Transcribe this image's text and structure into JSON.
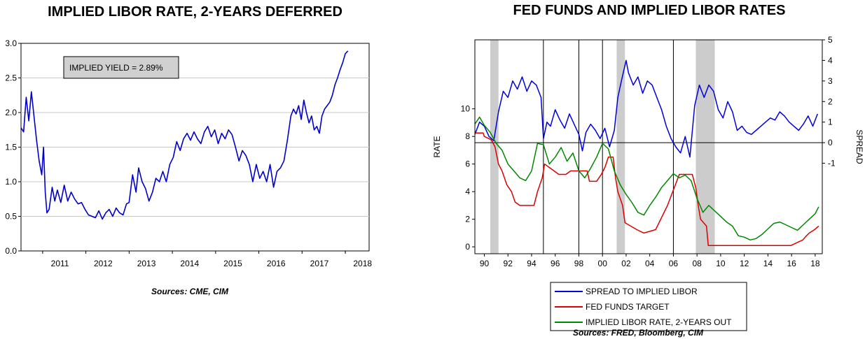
{
  "chart_data": [
    {
      "type": "line",
      "title": "IMPLIED LIBOR RATE, 2-YEARS DEFERRED",
      "annotation": "IMPLIED YIELD = 2.89%",
      "source": "Sources:  CME, CIM",
      "ylim": [
        0,
        3
      ],
      "yticks": [
        "0.0",
        "0.5",
        "1.0",
        "1.5",
        "2.0",
        "2.5",
        "3.0"
      ],
      "xlim": [
        2010.5,
        2018.55
      ],
      "xticks": [
        "2011",
        "2012",
        "2013",
        "2014",
        "2015",
        "2016",
        "2017",
        "2018"
      ],
      "grid": true,
      "series": [
        {
          "color": "#0000cc",
          "x": [
            2010.5,
            2010.56,
            2010.62,
            2010.68,
            2010.74,
            2010.8,
            2010.86,
            2010.92,
            2010.98,
            2011.02,
            2011.06,
            2011.1,
            2011.15,
            2011.22,
            2011.28,
            2011.34,
            2011.42,
            2011.5,
            2011.58,
            2011.66,
            2011.74,
            2011.82,
            2011.9,
            2011.98,
            2012.06,
            2012.14,
            2012.22,
            2012.3,
            2012.38,
            2012.46,
            2012.54,
            2012.62,
            2012.7,
            2012.78,
            2012.86,
            2012.94,
            2013.0,
            2013.08,
            2013.16,
            2013.22,
            2013.3,
            2013.38,
            2013.46,
            2013.54,
            2013.62,
            2013.7,
            2013.78,
            2013.86,
            2013.94,
            2014.02,
            2014.1,
            2014.18,
            2014.26,
            2014.34,
            2014.42,
            2014.5,
            2014.58,
            2014.66,
            2014.74,
            2014.82,
            2014.9,
            2014.98,
            2015.06,
            2015.14,
            2015.22,
            2015.3,
            2015.38,
            2015.46,
            2015.54,
            2015.62,
            2015.7,
            2015.78,
            2015.86,
            2015.94,
            2016.02,
            2016.1,
            2016.18,
            2016.26,
            2016.34,
            2016.42,
            2016.5,
            2016.58,
            2016.66,
            2016.74,
            2016.8,
            2016.86,
            2016.92,
            2016.98,
            2017.04,
            2017.1,
            2017.16,
            2017.22,
            2017.28,
            2017.34,
            2017.4,
            2017.46,
            2017.52,
            2017.58,
            2017.64,
            2017.7,
            2017.76,
            2017.82,
            2017.88,
            2017.94,
            2018.0,
            2018.06
          ],
          "y": [
            1.78,
            1.72,
            2.22,
            1.88,
            2.3,
            1.95,
            1.6,
            1.3,
            1.1,
            1.5,
            0.85,
            0.55,
            0.6,
            0.92,
            0.72,
            0.88,
            0.7,
            0.95,
            0.72,
            0.85,
            0.75,
            0.68,
            0.7,
            0.6,
            0.52,
            0.5,
            0.48,
            0.58,
            0.46,
            0.55,
            0.6,
            0.5,
            0.62,
            0.55,
            0.52,
            0.68,
            0.7,
            1.1,
            0.85,
            1.2,
            1.0,
            0.9,
            0.72,
            0.85,
            1.05,
            1.0,
            1.15,
            1.0,
            1.25,
            1.35,
            1.58,
            1.45,
            1.62,
            1.7,
            1.6,
            1.72,
            1.62,
            1.55,
            1.72,
            1.8,
            1.65,
            1.75,
            1.55,
            1.7,
            1.62,
            1.75,
            1.68,
            1.5,
            1.3,
            1.45,
            1.38,
            1.25,
            1.0,
            1.25,
            1.05,
            1.15,
            1.0,
            1.25,
            0.92,
            1.15,
            1.2,
            1.3,
            1.6,
            1.95,
            2.05,
            1.98,
            2.1,
            1.9,
            2.18,
            2.0,
            1.85,
            1.95,
            1.75,
            1.8,
            1.7,
            1.95,
            2.05,
            2.1,
            2.15,
            2.25,
            2.4,
            2.5,
            2.62,
            2.72,
            2.85,
            2.89
          ]
        }
      ]
    },
    {
      "type": "line",
      "title": "FED FUNDS AND IMPLIED LIBOR RATES",
      "source": "Sources:  FRED, Bloomberg, CIM",
      "ylabel": "RATE",
      "ylabel_right": "SPREAD",
      "ylim": [
        -0.5,
        15
      ],
      "yticks": [
        "0",
        "2",
        "4",
        "6",
        "8",
        "10"
      ],
      "ylim_right": [
        -5.4,
        5
      ],
      "yticks_right": [
        "-1",
        "0",
        "1",
        "2",
        "3",
        "4",
        "5"
      ],
      "xlim": [
        1989.2,
        2018.6
      ],
      "xticks": [
        "90",
        "92",
        "94",
        "96",
        "98",
        "00",
        "02",
        "04",
        "06",
        "08",
        "10",
        "12",
        "14",
        "16",
        "18"
      ],
      "recessions": [
        [
          1990.5,
          1991.2
        ],
        [
          2001.2,
          2001.9
        ],
        [
          2007.9,
          2009.5
        ]
      ],
      "vlines": [
        1995.0,
        1998.0,
        2000.0,
        2006.0
      ],
      "zero_line": true,
      "legend_position": "bottom",
      "series": [
        {
          "name": "SPREAD TO IMPLIED LIBOR",
          "axis": "right",
          "color": "#0000dd",
          "x": [
            1989.2,
            1989.6,
            1990.0,
            1990.4,
            1990.8,
            1991.2,
            1991.6,
            1992.0,
            1992.4,
            1992.8,
            1993.2,
            1993.6,
            1994.0,
            1994.4,
            1994.8,
            1995.0,
            1995.3,
            1995.6,
            1996.0,
            1996.4,
            1996.8,
            1997.2,
            1997.6,
            1998.0,
            1998.3,
            1998.6,
            1999.0,
            1999.4,
            1999.8,
            2000.2,
            2000.6,
            2001.0,
            2001.3,
            2001.6,
            2002.0,
            2002.2,
            2002.6,
            2003.0,
            2003.4,
            2003.8,
            2004.2,
            2004.6,
            2005.0,
            2005.4,
            2005.8,
            2006.2,
            2006.6,
            2007.0,
            2007.4,
            2007.8,
            2008.2,
            2008.6,
            2009.0,
            2009.4,
            2009.8,
            2010.2,
            2010.6,
            2011.0,
            2011.4,
            2011.8,
            2012.2,
            2012.6,
            2013.0,
            2013.4,
            2013.8,
            2014.2,
            2014.6,
            2015.0,
            2015.4,
            2015.8,
            2016.2,
            2016.6,
            2017.0,
            2017.4,
            2017.8,
            2018.2
          ],
          "y": [
            0.4,
            1.0,
            0.8,
            0.3,
            0.1,
            1.5,
            2.5,
            2.2,
            3.0,
            2.6,
            3.2,
            2.5,
            3.0,
            2.8,
            2.2,
            0.2,
            1.0,
            0.8,
            1.6,
            1.1,
            0.7,
            1.4,
            0.9,
            0.4,
            -0.4,
            0.5,
            0.9,
            0.6,
            0.2,
            0.7,
            -0.2,
            0.6,
            2.2,
            3.0,
            4.0,
            3.4,
            2.8,
            3.2,
            2.4,
            3.0,
            2.8,
            2.2,
            1.6,
            0.8,
            0.2,
            -0.2,
            -0.5,
            0.3,
            -0.7,
            1.8,
            2.8,
            2.2,
            2.8,
            2.5,
            1.6,
            1.2,
            2.0,
            1.5,
            0.6,
            0.8,
            0.5,
            0.4,
            0.6,
            0.8,
            1.0,
            1.2,
            1.1,
            1.5,
            1.3,
            1.0,
            0.8,
            0.6,
            0.9,
            1.3,
            0.8,
            1.4
          ]
        },
        {
          "name": "FED FUNDS TARGET",
          "axis": "left",
          "color": "#dd0000",
          "x": [
            1989.2,
            1989.9,
            1990.0,
            1990.6,
            1990.9,
            1991.2,
            1991.5,
            1991.9,
            1992.3,
            1992.6,
            1993.0,
            1993.6,
            1994.2,
            1994.5,
            1994.9,
            1995.1,
            1995.5,
            1995.9,
            1996.3,
            1996.9,
            1997.3,
            1997.9,
            1998.7,
            1998.9,
            1999.5,
            1999.9,
            2000.2,
            2000.5,
            2000.9,
            2001.1,
            2001.3,
            2001.7,
            2001.9,
            2002.9,
            2003.5,
            2004.5,
            2005.5,
            2006.5,
            2007.6,
            2007.9,
            2008.1,
            2008.3,
            2008.8,
            2008.95,
            2015.95,
            2016.95,
            2017.2,
            2017.5,
            2017.95,
            2018.3
          ],
          "y": [
            8.25,
            8.25,
            8.0,
            7.75,
            7.25,
            6.0,
            5.5,
            4.5,
            4.0,
            3.25,
            3.0,
            3.0,
            3.0,
            4.0,
            5.0,
            6.0,
            5.75,
            5.5,
            5.25,
            5.25,
            5.5,
            5.5,
            5.5,
            4.75,
            4.75,
            5.25,
            5.75,
            6.5,
            6.5,
            5.0,
            4.0,
            3.0,
            1.75,
            1.25,
            1.0,
            1.25,
            3.0,
            5.25,
            5.25,
            4.25,
            3.0,
            2.0,
            1.5,
            0.1,
            0.1,
            0.5,
            0.75,
            1.0,
            1.25,
            1.5
          ]
        },
        {
          "name": "IMPLIED LIBOR RATE, 2-YEARS OUT",
          "axis": "left",
          "color": "#008800",
          "x": [
            1989.2,
            1989.6,
            1990.0,
            1990.5,
            1991.0,
            1991.5,
            1992.0,
            1992.5,
            1993.0,
            1993.5,
            1994.0,
            1994.5,
            1995.0,
            1995.5,
            1996.0,
            1996.5,
            1997.0,
            1997.5,
            1998.0,
            1998.5,
            1999.0,
            1999.5,
            2000.0,
            2000.5,
            2001.0,
            2001.5,
            2002.0,
            2002.5,
            2003.0,
            2003.5,
            2004.0,
            2004.5,
            2005.0,
            2005.5,
            2006.0,
            2006.5,
            2007.0,
            2007.5,
            2008.0,
            2008.5,
            2009.0,
            2009.5,
            2010.0,
            2010.5,
            2011.0,
            2011.5,
            2012.0,
            2012.5,
            2013.0,
            2013.5,
            2014.0,
            2014.5,
            2015.0,
            2015.5,
            2016.0,
            2016.5,
            2017.0,
            2017.5,
            2018.0,
            2018.3
          ],
          "y": [
            8.9,
            9.4,
            8.8,
            8.3,
            7.5,
            7.0,
            6.0,
            5.5,
            5.0,
            4.8,
            5.5,
            7.5,
            7.4,
            6.0,
            6.5,
            7.2,
            6.2,
            6.8,
            5.5,
            5.0,
            5.7,
            6.5,
            7.5,
            7.1,
            5.5,
            4.5,
            3.8,
            3.2,
            2.5,
            2.3,
            3.0,
            3.6,
            4.3,
            4.8,
            5.3,
            5.0,
            5.2,
            4.8,
            3.5,
            2.5,
            3.0,
            2.6,
            2.2,
            1.8,
            1.5,
            0.8,
            0.7,
            0.5,
            0.6,
            0.9,
            1.3,
            1.7,
            1.8,
            1.6,
            1.4,
            1.2,
            1.6,
            2.0,
            2.4,
            2.9
          ]
        }
      ]
    }
  ]
}
